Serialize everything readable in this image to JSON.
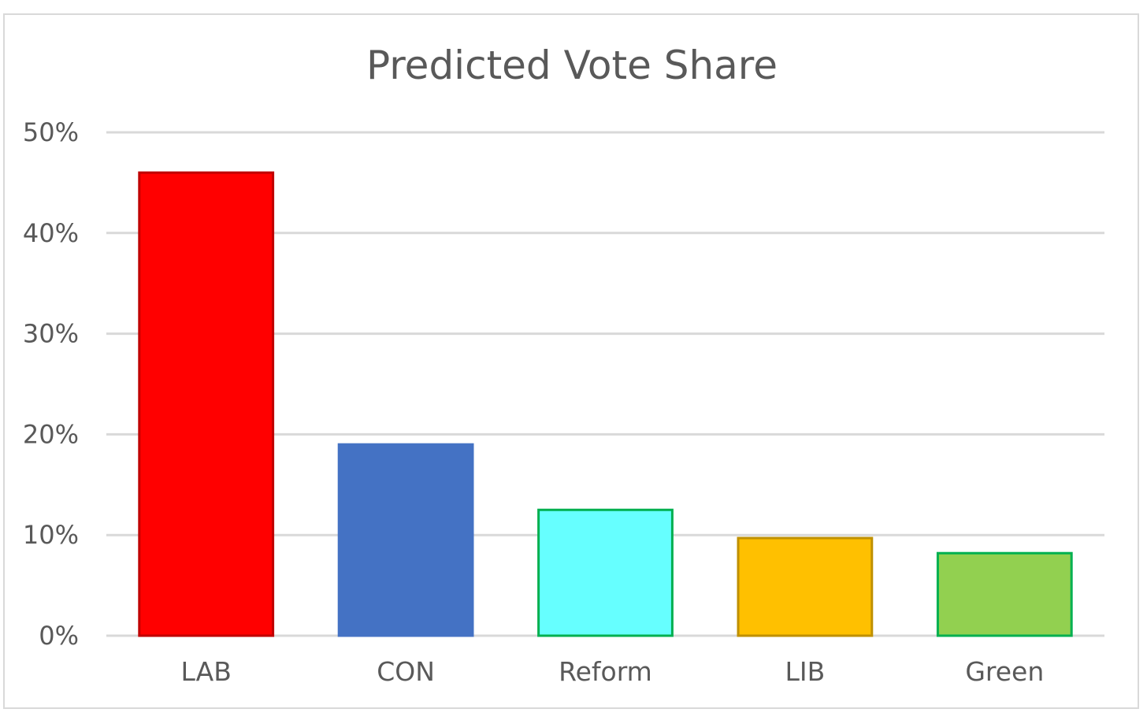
{
  "chart_data": {
    "type": "bar",
    "title": "Predicted Vote Share",
    "categories": [
      "LAB",
      "CON",
      "Reform",
      "LIB",
      "Green"
    ],
    "values": [
      46,
      19,
      12.5,
      9.7,
      8.2
    ],
    "ylim": [
      0,
      50
    ],
    "yticks": [
      0,
      10,
      20,
      30,
      40,
      50
    ],
    "ytick_labels": [
      "0%",
      "10%",
      "20%",
      "30%",
      "40%",
      "50%"
    ],
    "grid": true,
    "bar_fill": [
      "#ff0000",
      "#4472c4",
      "#66ffff",
      "#ffc000",
      "#92d050"
    ],
    "bar_stroke": [
      "#c00000",
      "#4472c4",
      "#00b050",
      "#bf9000",
      "#00b050"
    ]
  }
}
